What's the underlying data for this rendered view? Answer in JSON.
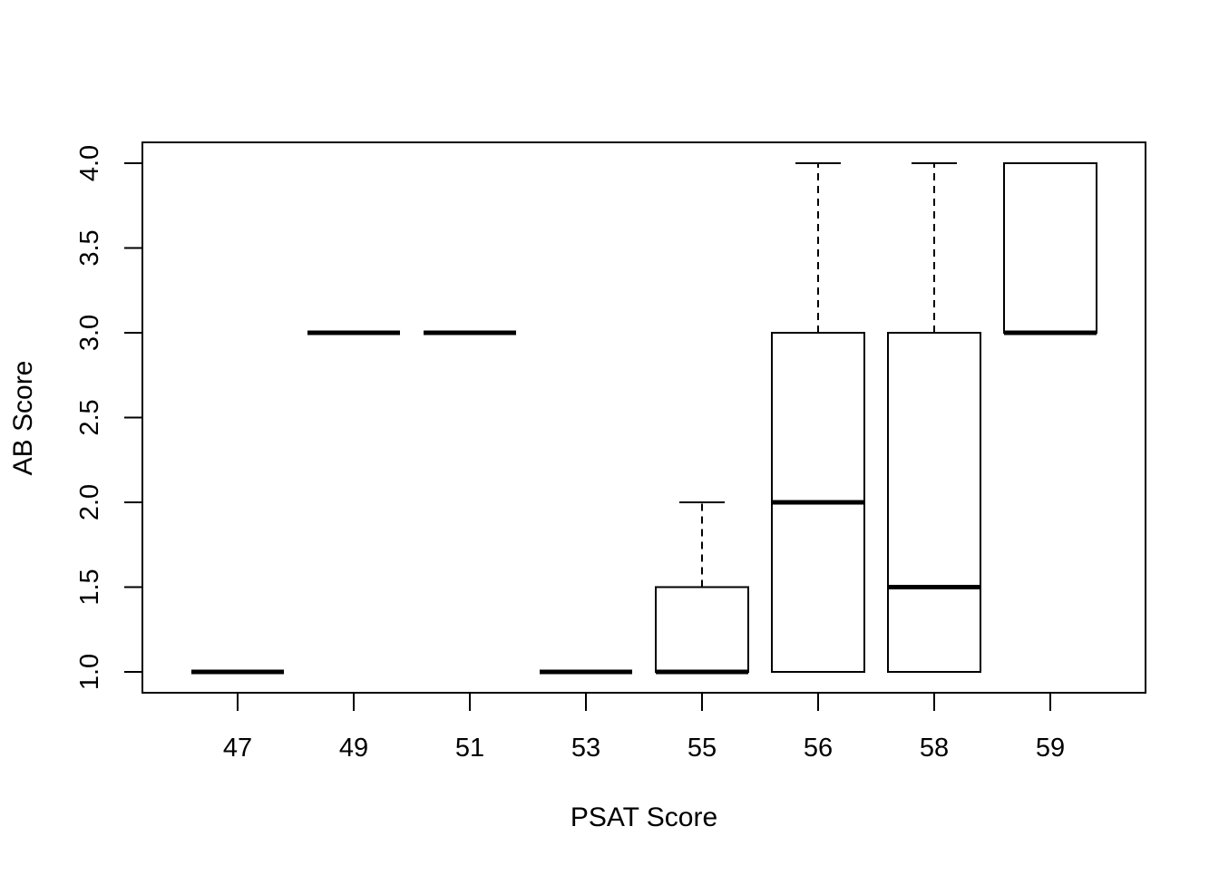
{
  "chart_data": {
    "type": "boxplot",
    "title": "",
    "xlabel": "PSAT Score",
    "ylabel": "AB Score",
    "ylim": [
      1.0,
      4.0
    ],
    "y_ticks": [
      "1.0",
      "1.5",
      "2.0",
      "2.5",
      "3.0",
      "3.5",
      "4.0"
    ],
    "y_tick_values": [
      1.0,
      1.5,
      2.0,
      2.5,
      3.0,
      3.5,
      4.0
    ],
    "grid": false,
    "categories": [
      "47",
      "49",
      "51",
      "53",
      "55",
      "56",
      "58",
      "59"
    ],
    "boxes": [
      {
        "category": "47",
        "whisker_low": 1.0,
        "q1": 1.0,
        "median": 1.0,
        "q3": 1.0,
        "whisker_high": 1.0
      },
      {
        "category": "49",
        "whisker_low": 3.0,
        "q1": 3.0,
        "median": 3.0,
        "q3": 3.0,
        "whisker_high": 3.0
      },
      {
        "category": "51",
        "whisker_low": 3.0,
        "q1": 3.0,
        "median": 3.0,
        "q3": 3.0,
        "whisker_high": 3.0
      },
      {
        "category": "53",
        "whisker_low": 1.0,
        "q1": 1.0,
        "median": 1.0,
        "q3": 1.0,
        "whisker_high": 1.0
      },
      {
        "category": "55",
        "whisker_low": 1.0,
        "q1": 1.0,
        "median": 1.0,
        "q3": 1.5,
        "whisker_high": 2.0
      },
      {
        "category": "56",
        "whisker_low": 1.0,
        "q1": 1.0,
        "median": 2.0,
        "q3": 3.0,
        "whisker_high": 4.0
      },
      {
        "category": "58",
        "whisker_low": 1.0,
        "q1": 1.0,
        "median": 1.5,
        "q3": 3.0,
        "whisker_high": 4.0
      },
      {
        "category": "59",
        "whisker_low": 3.0,
        "q1": 3.0,
        "median": 3.0,
        "q3": 4.0,
        "whisker_high": 4.0
      }
    ],
    "colors": {
      "box_fill": "#ffffff",
      "stroke": "#000000"
    }
  }
}
